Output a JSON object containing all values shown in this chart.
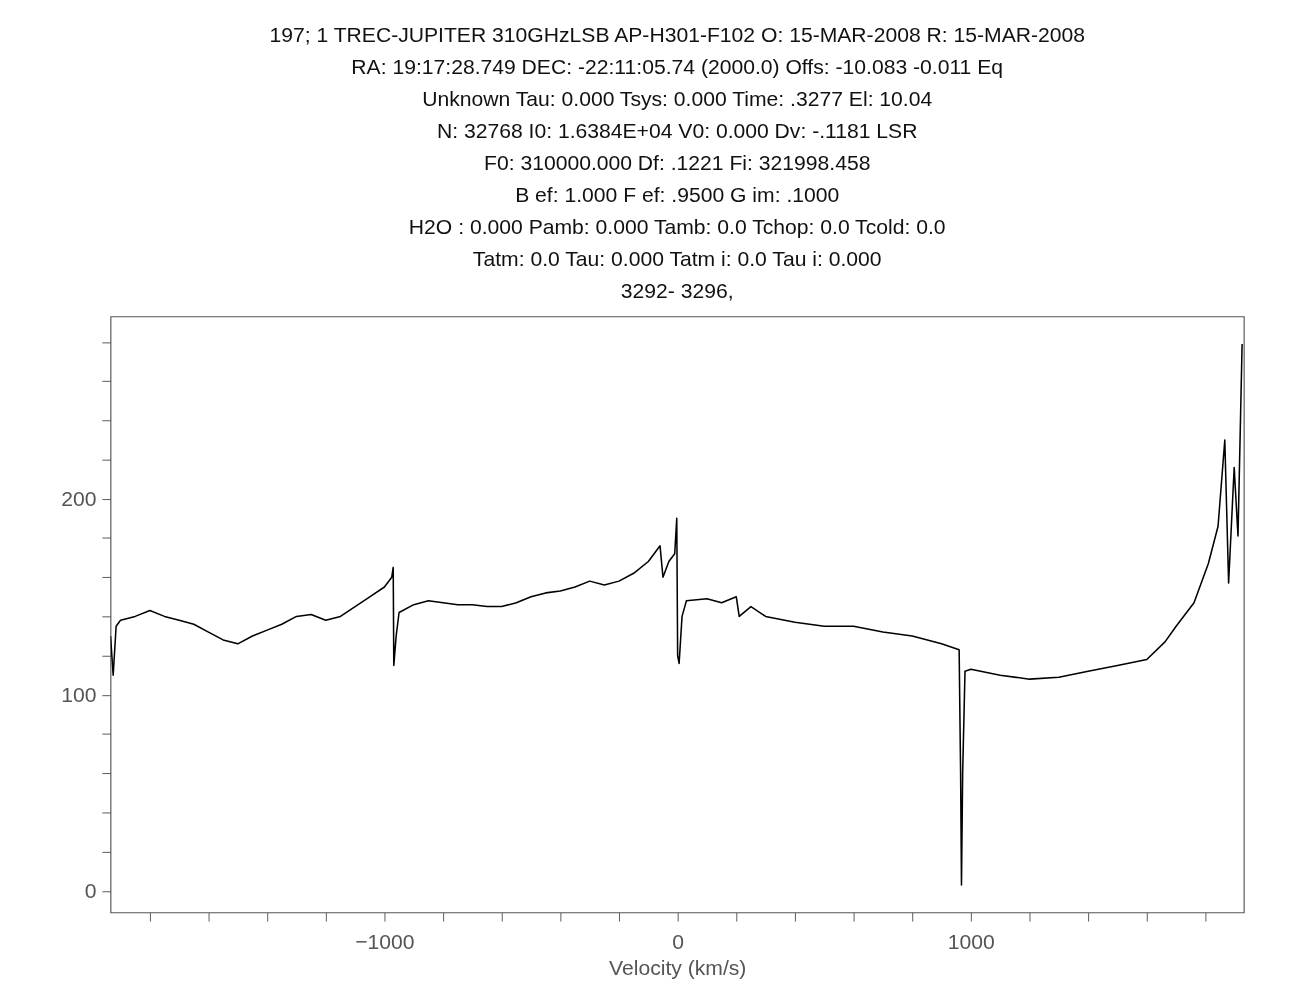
{
  "chart_data": {
    "type": "line",
    "annotations": [
      "197;  1 TREC-JUPITER 310GHzLSB    AP-H301-F102 O: 15-MAR-2008 R: 15-MAR-2008",
      "RA: 19:17:28.749  DEC: -22:11:05.74  (2000.0) Offs:  -10.083        -0.011  Eq",
      "Unknown    Tau:    0.000       Tsys:    0.000        Time:    .3277        El:  10.04",
      "N: 32768   I0:  1.6384E+04        V0:    0.000      Dv:  -.1181       LSR",
      "F0:    310000.000       Df:    .1221       Fi:    321998.458",
      "B ef:    1.000       F ef:    .9500       G im:    .1000",
      "H2O :    0.000       Pamb:    0.000       Tamb:    0.0 Tchop:    0.0 Tcold:    0.0",
      "Tatm:    0.0  Tau:    0.000       Tatm i:    0.0  Tau i:    0.000",
      "3292-   3296,"
    ],
    "xlabel": "Velocity (km/s)",
    "x": [
      -1934,
      -1925,
      -1915,
      -1900,
      -1850,
      -1800,
      -1750,
      -1700,
      -1650,
      -1600,
      -1550,
      -1500,
      -1450,
      -1400,
      -1350,
      -1300,
      -1250,
      -1200,
      -1150,
      -1100,
      -1050,
      -1000,
      -975,
      -970,
      -968,
      -960,
      -950,
      -900,
      -850,
      -800,
      -750,
      -700,
      -650,
      -600,
      -550,
      -500,
      -450,
      -400,
      -350,
      -300,
      -250,
      -200,
      -150,
      -100,
      -60,
      -50,
      -30,
      -10,
      -3,
      0,
      5,
      15,
      30,
      100,
      150,
      200,
      210,
      250,
      300,
      400,
      500,
      600,
      700,
      800,
      900,
      960,
      965,
      968,
      972,
      980,
      1000,
      1100,
      1200,
      1300,
      1400,
      1500,
      1600,
      1662,
      1700,
      1761,
      1810,
      1843,
      1866,
      1879,
      1898,
      1911,
      1925
    ],
    "series": [
      {
        "color": "#000000",
        "values": [
          130,
          110,
          135,
          138,
          140,
          143,
          140,
          138,
          136,
          132,
          128,
          126,
          130,
          133,
          136,
          140,
          141,
          138,
          140,
          145,
          150,
          155,
          160,
          165,
          115,
          130,
          142,
          146,
          148,
          147,
          146,
          146,
          145,
          145,
          147,
          150,
          152,
          153,
          155,
          158,
          156,
          158,
          162,
          168,
          176,
          160,
          168,
          172,
          190,
          120,
          116,
          140,
          148,
          149,
          147,
          150,
          140,
          145,
          140,
          137,
          135,
          135,
          132,
          130,
          126,
          123,
          60,
          3,
          60,
          112,
          113,
          110,
          108,
          109,
          112,
          115,
          118,
          127,
          135,
          147,
          167,
          186,
          230,
          157,
          216,
          181,
          279
        ]
      }
    ],
    "xlim": [
      -1934,
      1931
    ],
    "ylim": [
      -11,
      293
    ],
    "xticks": [
      {
        "value": -1800,
        "label": null
      },
      {
        "value": -1600,
        "label": null
      },
      {
        "value": -1400,
        "label": null
      },
      {
        "value": -1200,
        "label": null
      },
      -1000,
      {
        "value": -800,
        "label": null
      },
      {
        "value": -600,
        "label": null
      },
      {
        "value": -400,
        "label": null
      },
      {
        "value": -200,
        "label": null
      },
      0,
      {
        "value": 200,
        "label": null
      },
      {
        "value": 400,
        "label": null
      },
      {
        "value": 600,
        "label": null
      },
      {
        "value": 800,
        "label": null
      },
      1000,
      {
        "value": 1200,
        "label": null
      },
      {
        "value": 1400,
        "label": null
      },
      {
        "value": 1600,
        "label": null
      },
      {
        "value": 1800,
        "label": null
      }
    ],
    "yticks": [
      0,
      {
        "value": 20,
        "label": null
      },
      {
        "value": 40,
        "label": null
      },
      {
        "value": 60,
        "label": null
      },
      {
        "value": 80,
        "label": null
      },
      100,
      {
        "value": 120,
        "label": null
      },
      {
        "value": 140,
        "label": null
      },
      {
        "value": 160,
        "label": null
      },
      {
        "value": 180,
        "label": null
      },
      200,
      {
        "value": 220,
        "label": null
      },
      {
        "value": 240,
        "label": null
      },
      {
        "value": 260,
        "label": null
      },
      {
        "value": 280,
        "label": null
      }
    ],
    "grid": false,
    "marker": "none",
    "line_style": "solid"
  }
}
